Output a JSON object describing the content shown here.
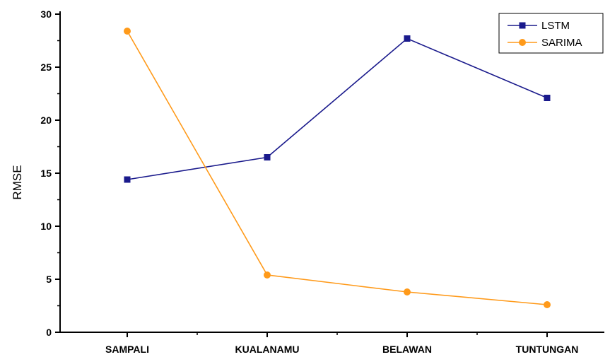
{
  "chart_data": {
    "type": "line",
    "title": "",
    "xlabel": "",
    "ylabel": "RMSE",
    "categories": [
      "SAMPALI",
      "KUALANAMU",
      "BELAWAN",
      "TUNTUNGAN"
    ],
    "ylim": [
      0,
      30
    ],
    "yticks": [
      0,
      5,
      10,
      15,
      20,
      25,
      30
    ],
    "grid": false,
    "legend_position": "top-right",
    "series": [
      {
        "name": "LSTM",
        "color": "#1a1a8c",
        "marker": "square",
        "values": [
          14.4,
          16.5,
          27.7,
          22.1
        ]
      },
      {
        "name": "SARIMA",
        "color": "#ff9a1a",
        "marker": "circle",
        "values": [
          28.4,
          5.4,
          3.8,
          2.6
        ]
      }
    ]
  }
}
